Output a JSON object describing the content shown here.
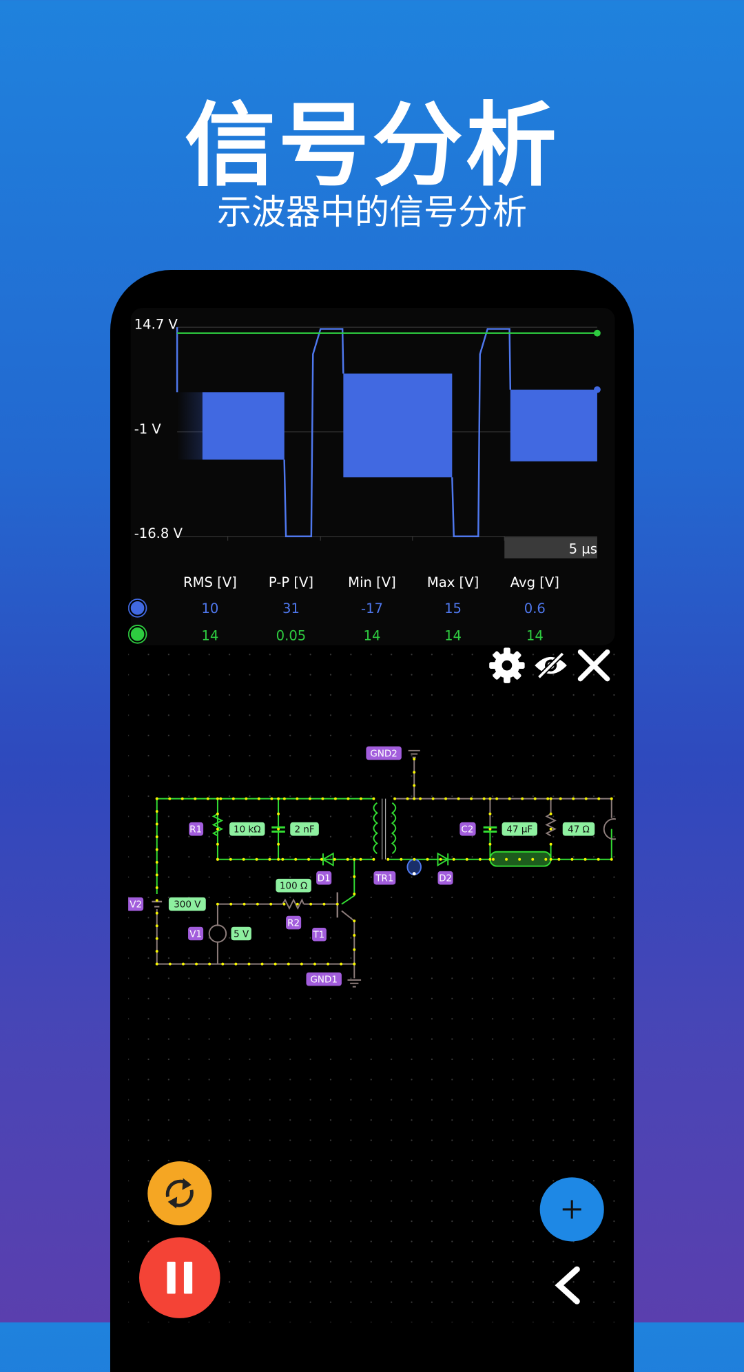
{
  "header": {
    "title": "信号分析",
    "subtitle": "示波器中的信号分析"
  },
  "scope": {
    "y_labels": [
      "14.7 V",
      "-1 V",
      "-16.8 V"
    ],
    "time_scale": "5 µs",
    "stats": {
      "headers": [
        "RMS [V]",
        "P-P [V]",
        "Min [V]",
        "Max [V]",
        "Avg [V]"
      ],
      "rows": [
        {
          "channel_color": "#4169e1",
          "values": [
            "10",
            "31",
            "-17",
            "15",
            "0.6"
          ]
        },
        {
          "channel_color": "#2ecc40",
          "values": [
            "14",
            "0.05",
            "14",
            "14",
            "14"
          ]
        }
      ]
    }
  },
  "toolbar": {
    "icons": [
      "gear-icon",
      "eye-off-icon",
      "close-icon"
    ]
  },
  "circuit": {
    "labels": {
      "gnd2": "GND2",
      "r1": "R1",
      "r1_value": "10 kΩ",
      "c1_value": "2 nF",
      "d1": "D1",
      "tr1": "TR1",
      "d2": "D2",
      "c2": "C2",
      "c2_value": "47 µF",
      "r_load_value": "47 Ω",
      "v2": "V2",
      "v2_value": "300 V",
      "r2_value": "100 Ω",
      "r2": "R2",
      "v1": "V1",
      "v1_value": "5 V",
      "t1": "T1",
      "gnd1": "GND1"
    }
  },
  "controls": {
    "icons": [
      "refresh-icon",
      "pause-icon",
      "plus-icon",
      "chevron-left-icon"
    ],
    "colors": {
      "refresh": "#f5a623",
      "pause": "#f44336",
      "add": "#1e88e5"
    }
  }
}
